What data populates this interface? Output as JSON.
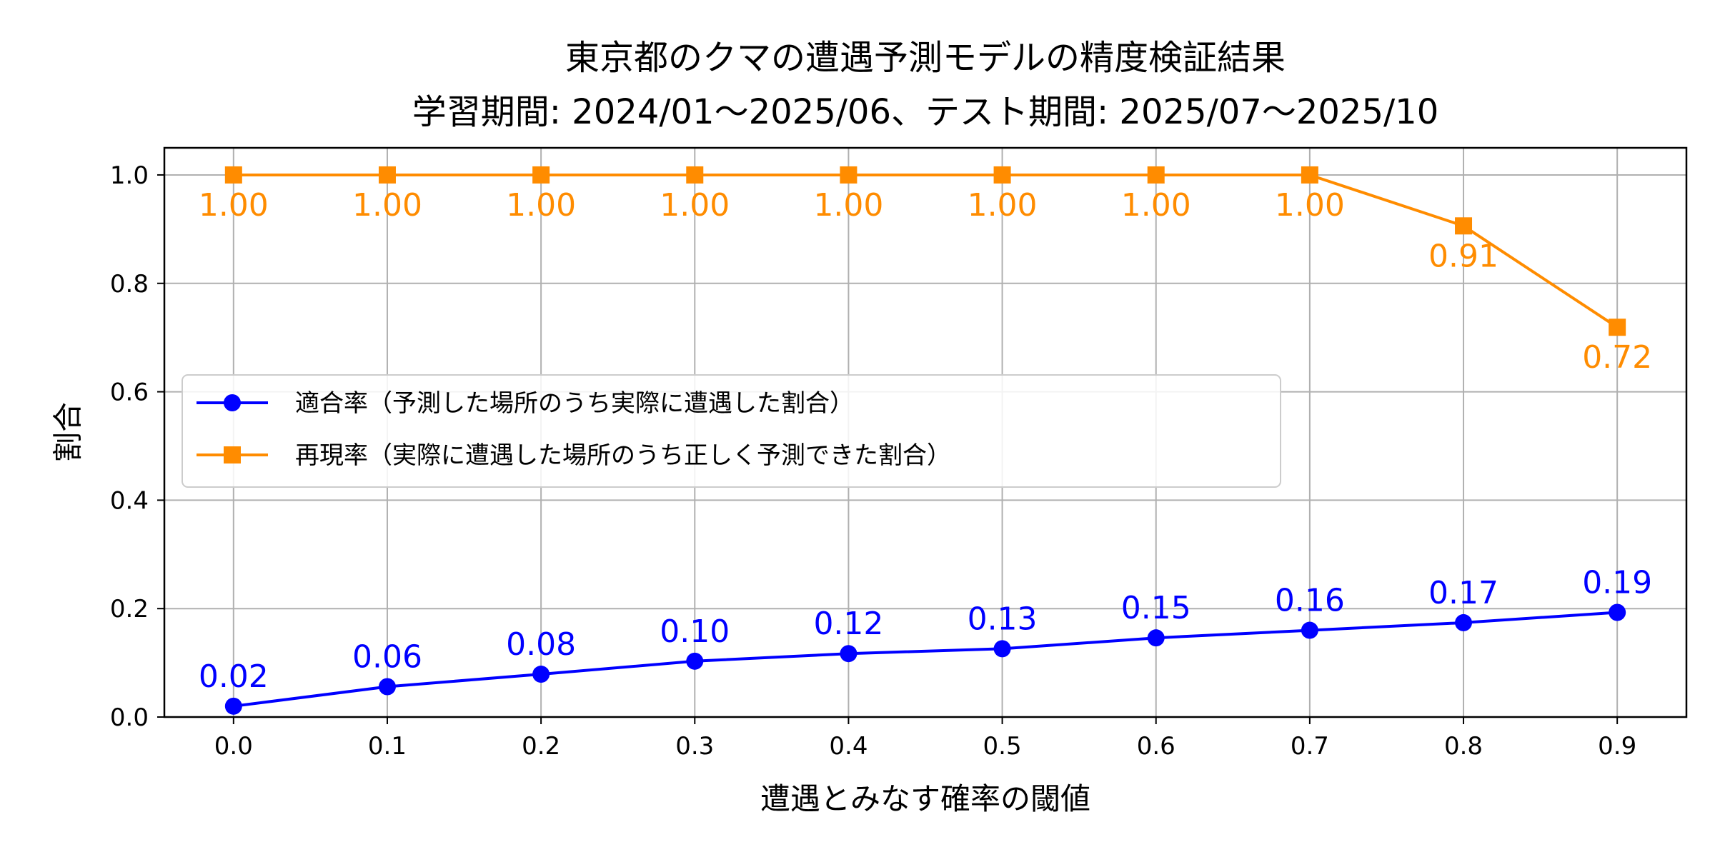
{
  "chart_data": {
    "type": "line",
    "title_lines": [
      "東京都のクマの遭遇予測モデルの精度検証結果",
      "学習期間: 2024/01〜2025/06、テスト期間: 2025/07〜2025/10"
    ],
    "xlabel": "遭遇とみなす確率の閾値",
    "ylabel": "割合",
    "x": [
      0.0,
      0.1,
      0.2,
      0.3,
      0.4,
      0.5,
      0.6,
      0.7,
      0.8,
      0.9
    ],
    "x_tick_labels": [
      "0.0",
      "0.1",
      "0.2",
      "0.3",
      "0.4",
      "0.5",
      "0.6",
      "0.7",
      "0.8",
      "0.9"
    ],
    "y_tick_labels": [
      "0.0",
      "0.2",
      "0.4",
      "0.6",
      "0.8",
      "1.0"
    ],
    "xlim": [
      -0.045,
      0.945
    ],
    "ylim": [
      0.0,
      1.05
    ],
    "grid": true,
    "legend_position": "center-left",
    "series": [
      {
        "name": "適合率（予測した場所のうち実際に遭遇した割合）",
        "color": "#0000ff",
        "marker": "circle",
        "values": [
          0.02,
          0.056,
          0.079,
          0.103,
          0.117,
          0.126,
          0.146,
          0.16,
          0.174,
          0.193
        ],
        "labels": [
          "0.02",
          "0.06",
          "0.08",
          "0.10",
          "0.12",
          "0.13",
          "0.15",
          "0.16",
          "0.17",
          "0.19"
        ],
        "label_placement": "above"
      },
      {
        "name": "再現率（実際に遭遇した場所のうち正しく予測できた割合）",
        "color": "#ff8c00",
        "marker": "square",
        "values": [
          1.0,
          1.0,
          1.0,
          1.0,
          1.0,
          1.0,
          1.0,
          1.0,
          0.906,
          0.719
        ],
        "labels": [
          "1.00",
          "1.00",
          "1.00",
          "1.00",
          "1.00",
          "1.00",
          "1.00",
          "1.00",
          "0.91",
          "0.72"
        ],
        "label_placement": "below"
      }
    ]
  }
}
